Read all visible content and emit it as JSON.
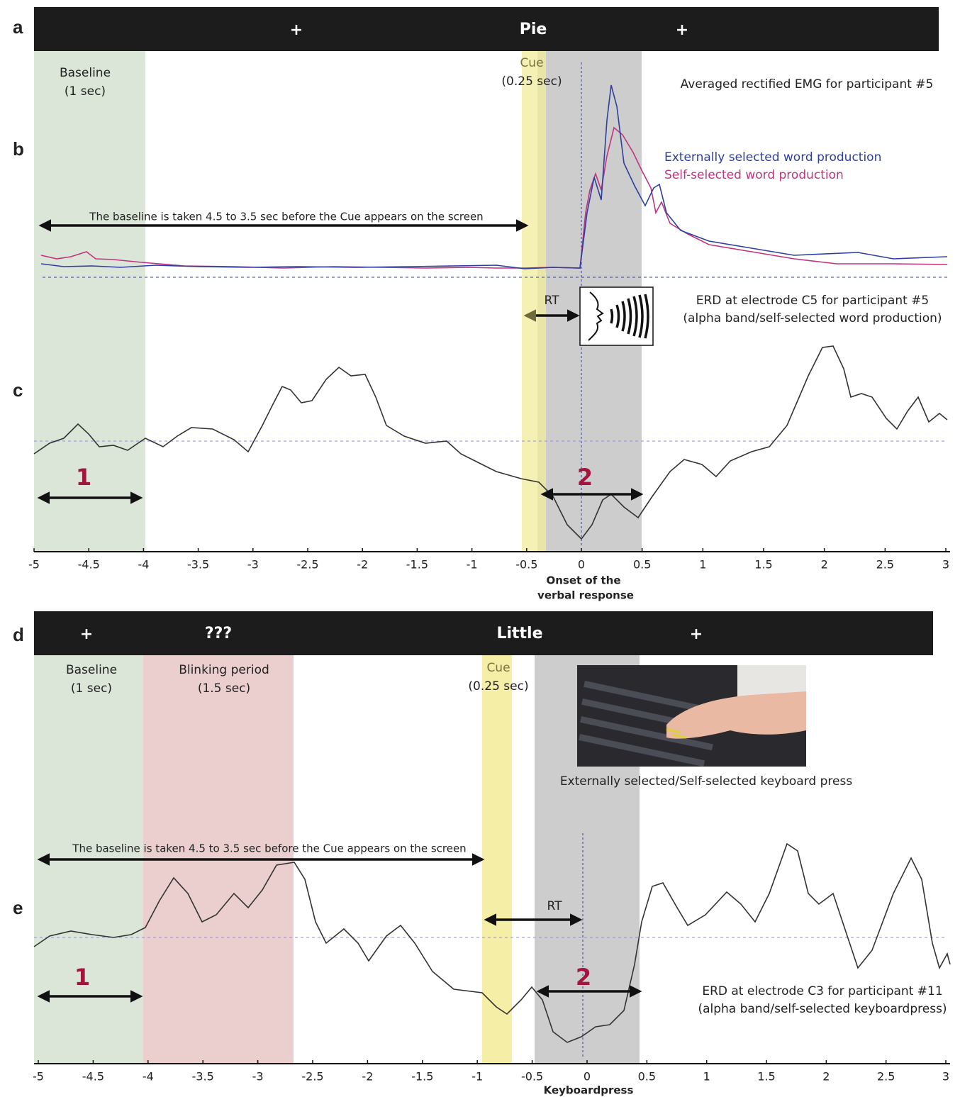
{
  "panel_labels": [
    "a",
    "b",
    "c",
    "d",
    "e"
  ],
  "panel_a": {
    "left": "+",
    "word": "Pie",
    "right": "+"
  },
  "panel_b": {
    "baseline": "Baseline",
    "baseline_duration": "(1 sec)",
    "cue": "Cue",
    "cue_duration": "(0.25 sec)",
    "title": "Averaged rectified EMG for participant #5",
    "legend": [
      {
        "name": "Externally selected word production",
        "color": "#2e3f9e"
      },
      {
        "name": "Self-selected word production",
        "color": "#c2337f"
      }
    ],
    "baseline_note": "The baseline is taken 4.5 to 3.5 sec before the Cue appears on the screen"
  },
  "panel_c": {
    "rt": "RT",
    "title_line1": "ERD at electrode C5 for participant #5",
    "title_line2": "(alpha band/self-selected word production)",
    "marker_1": "1",
    "marker_2": "2",
    "xticks": [
      -5,
      -4.5,
      -4,
      -3.5,
      -3,
      -2.5,
      -2,
      -1.5,
      -1,
      -0.5,
      0,
      0.5,
      1,
      1.5,
      2,
      2.5,
      3
    ],
    "xlabel_line1": "Onset of the",
    "xlabel_line2": "verbal response"
  },
  "panel_d": {
    "left": "+",
    "blink": "???",
    "word": "Little",
    "right": "+",
    "baseline": "Baseline",
    "baseline_duration": "(1 sec)",
    "blinking": "Blinking period",
    "blinking_duration": "(1.5 sec)",
    "cue": "Cue",
    "cue_duration": "(0.25 sec)",
    "caption": "Externally selected/Self-selected keyboard press"
  },
  "panel_e": {
    "baseline_note": "The baseline is taken 4.5 to 3.5 sec before the Cue appears on the screen",
    "rt": "RT",
    "marker_1": "1",
    "marker_2": "2",
    "title_line1": "ERD at electrode C3 for participant #11",
    "title_line2": "(alpha band/self-selected keyboardpress)",
    "xticks": [
      -5,
      -4.5,
      -4,
      -3.5,
      -3,
      -2.5,
      -2,
      -1.5,
      -1,
      -0.5,
      0,
      0.5,
      1,
      1.5,
      2,
      2.5,
      3
    ],
    "xlabel": "Keyboardpress"
  }
}
